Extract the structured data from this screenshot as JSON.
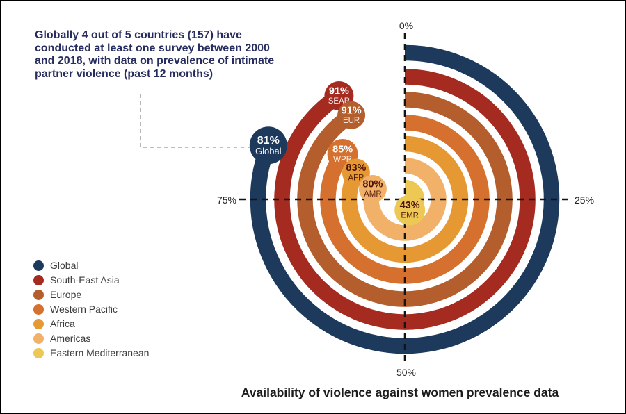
{
  "annotation": {
    "lines": [
      "Globally 4 out of 5 countries (157) have",
      "conducted at least one survey between 2000",
      "and 2018, with data on prevalence of intimate",
      "partner violence (past 12 months)"
    ],
    "text_color": "#272c5e"
  },
  "chart_data": {
    "type": "radial-bar",
    "title": "Availability of violence against women prevalence data",
    "unit": "%",
    "axis_ticks": [
      "0%",
      "25%",
      "50%",
      "75%"
    ],
    "start_angle_deg": 0,
    "direction": "clockwise",
    "series": [
      {
        "name": "Global",
        "code": "Global",
        "value": 81,
        "value_label": "81%",
        "color": "#1d3a5c",
        "bubble_text_color": "#ffffff"
      },
      {
        "name": "South-East Asia",
        "code": "SEAR",
        "value": 91,
        "value_label": "91%",
        "color": "#a52a1f",
        "bubble_text_color": "#ffffff"
      },
      {
        "name": "Europe",
        "code": "EUR",
        "value": 91,
        "value_label": "91%",
        "color": "#b35e2c",
        "bubble_text_color": "#ffffff"
      },
      {
        "name": "Western Pacific",
        "code": "WPR",
        "value": 85,
        "value_label": "85%",
        "color": "#d5702e",
        "bubble_text_color": "#ffffff"
      },
      {
        "name": "Africa",
        "code": "AFR",
        "value": 83,
        "value_label": "83%",
        "color": "#e69933",
        "bubble_text_color": "#4a1208"
      },
      {
        "name": "Americas",
        "code": "AMR",
        "value": 80,
        "value_label": "80%",
        "color": "#f1b168",
        "bubble_text_color": "#4a1208"
      },
      {
        "name": "Eastern Mediterranean",
        "code": "EMR",
        "value": 43,
        "value_label": "43%",
        "color": "#eec855",
        "bubble_text_color": "#4a1208"
      }
    ],
    "legend_position": "bottom-left",
    "grid": "dashed-crosshair"
  },
  "colors": {
    "crosshair": "#141414",
    "connector": "#a5a5a5",
    "axis_tick_text": "#242424",
    "legend_text": "#3b3b3b",
    "title_text": "#1c1c1a",
    "background": "#ffffff",
    "frame_border": "#000000"
  }
}
